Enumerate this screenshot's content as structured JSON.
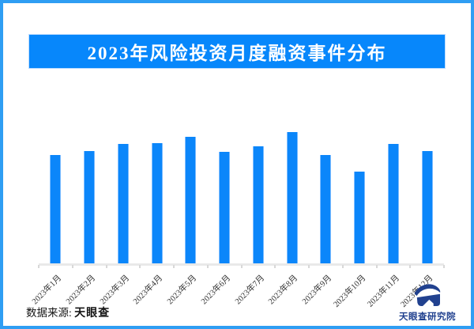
{
  "page": {
    "frame_border_color": "#2f9ef3",
    "background_color": "#ffffff"
  },
  "header": {
    "title": "2023年风险投资月度融资事件分布",
    "banner_color": "#0787fb",
    "title_color": "#ffffff"
  },
  "chart_data": {
    "type": "bar",
    "title": "2023年风险投资月度融资事件分布",
    "categories": [
      "2023年1月",
      "2023年2月",
      "2023年3月",
      "2023年4月",
      "2023年5月",
      "2023年6月",
      "2023年7月",
      "2023年8月",
      "2023年9月",
      "2023年10月",
      "2023年11月",
      "2023年12月"
    ],
    "values": [
      137,
      142,
      151,
      152,
      160,
      141,
      148,
      166,
      137,
      116,
      151,
      142
    ],
    "xlabel": "",
    "ylabel": "",
    "ylim": [
      0,
      173
    ],
    "grid": false,
    "legend": "none",
    "value_axis_labels_shown": false,
    "note": "No numeric axis ticks or data labels are visible in the chart; values are relative bar heights in pixels.",
    "bar_color": "#0b86fa",
    "axis_color": "#e9e9e9",
    "tick_color": "#d8d8d8",
    "xlabel_color": "#333333",
    "xlabel_rotation_deg": -45
  },
  "footer": {
    "source_label": "数据来源:",
    "source_value": "天眼查",
    "logo_icon": "tianyancha-eye-logo",
    "logo_caption": "天眼查研究院",
    "logo_color": "#21418f"
  }
}
